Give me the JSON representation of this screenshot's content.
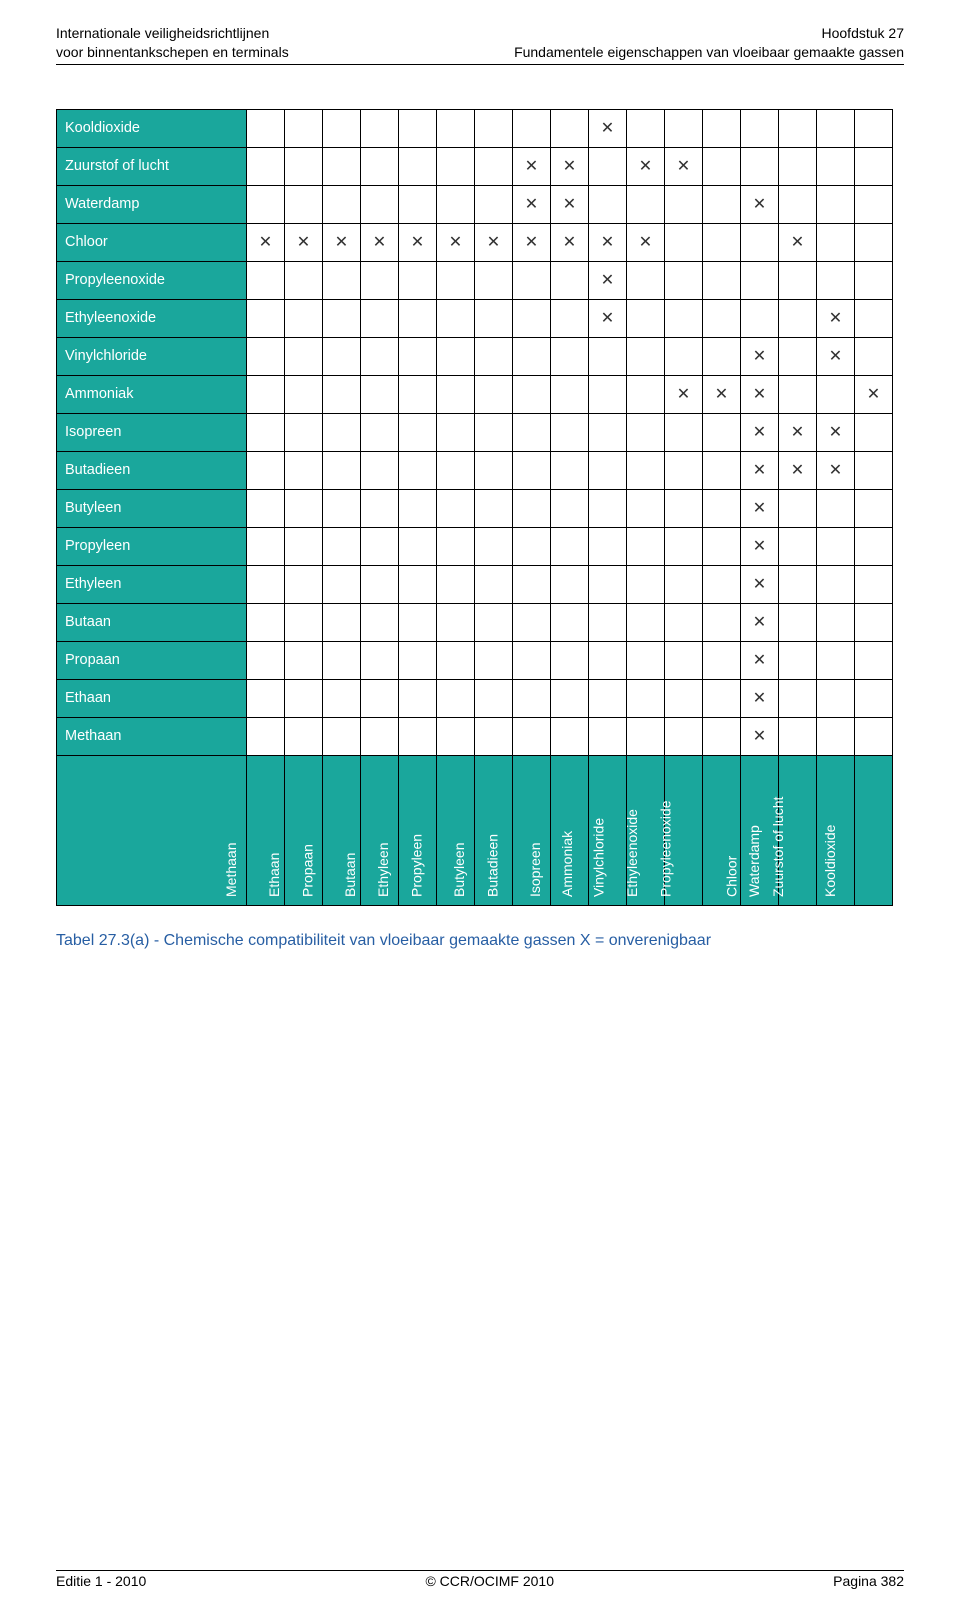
{
  "colors": {
    "header_teal": "#1aa79c",
    "text_white": "#ffffff",
    "caption_blue": "#275ea3",
    "mark": "#333333"
  },
  "header": {
    "left_line1": "Internationale veiligheidsrichtlijnen",
    "left_line2": "voor binnentankschepen en terminals",
    "right_line1": "Hoofdstuk 27",
    "right_line2": "Fundamentele eigenschappen van vloeibaar gemaakte gassen"
  },
  "footer": {
    "left": "Editie 1 - 2010",
    "center": "© CCR/OCIMF 2010",
    "right": "Pagina 382"
  },
  "caption": "Tabel 27.3(a) - Chemische compatibiliteit van vloeibaar gemaakte gassen X = onverenigbaar",
  "mark_glyph": "✕",
  "row_labels": [
    "Kooldioxide",
    "Zuurstof of lucht",
    "Waterdamp",
    "Chloor",
    "Propyleenoxide",
    "Ethyleenoxide",
    "Vinylchloride",
    "Ammoniak",
    "Isopreen",
    "Butadieen",
    "Butyleen",
    "Propyleen",
    "Ethyleen",
    "Butaan",
    "Propaan",
    "Ethaan",
    "Methaan"
  ],
  "col_labels": [
    "Methaan",
    "Ethaan",
    "Propaan",
    "Butaan",
    "Ethyleen",
    "Propyleen",
    "Butyleen",
    "Butadieen",
    "Isopreen",
    "Ammoniak",
    "Vinylchloride",
    "Ethyleenoxide",
    "Propyleenoxide",
    "Chloor",
    "Waterdamp",
    "Zuurstof of lucht",
    "Kooldioxide"
  ],
  "matrix": [
    [
      0,
      0,
      0,
      0,
      0,
      0,
      0,
      0,
      0,
      1,
      0,
      0,
      0,
      0,
      0,
      0,
      0
    ],
    [
      0,
      0,
      0,
      0,
      0,
      0,
      0,
      1,
      1,
      0,
      1,
      1,
      0,
      0,
      0,
      0,
      0
    ],
    [
      0,
      0,
      0,
      0,
      0,
      0,
      0,
      1,
      1,
      0,
      0,
      0,
      0,
      1,
      0,
      0,
      0
    ],
    [
      1,
      1,
      1,
      1,
      1,
      1,
      1,
      1,
      1,
      1,
      1,
      0,
      0,
      0,
      1,
      0,
      0
    ],
    [
      0,
      0,
      0,
      0,
      0,
      0,
      0,
      0,
      0,
      1,
      0,
      0,
      0,
      0,
      0,
      0,
      0
    ],
    [
      0,
      0,
      0,
      0,
      0,
      0,
      0,
      0,
      0,
      1,
      0,
      0,
      0,
      0,
      0,
      1,
      0
    ],
    [
      0,
      0,
      0,
      0,
      0,
      0,
      0,
      0,
      0,
      0,
      0,
      0,
      0,
      1,
      0,
      1,
      0
    ],
    [
      0,
      0,
      0,
      0,
      0,
      0,
      0,
      0,
      0,
      0,
      0,
      1,
      1,
      1,
      0,
      0,
      1
    ],
    [
      0,
      0,
      0,
      0,
      0,
      0,
      0,
      0,
      0,
      0,
      0,
      0,
      0,
      1,
      1,
      1,
      0
    ],
    [
      0,
      0,
      0,
      0,
      0,
      0,
      0,
      0,
      0,
      0,
      0,
      0,
      0,
      1,
      1,
      1,
      0
    ],
    [
      0,
      0,
      0,
      0,
      0,
      0,
      0,
      0,
      0,
      0,
      0,
      0,
      0,
      1,
      0,
      0,
      0
    ],
    [
      0,
      0,
      0,
      0,
      0,
      0,
      0,
      0,
      0,
      0,
      0,
      0,
      0,
      1,
      0,
      0,
      0
    ],
    [
      0,
      0,
      0,
      0,
      0,
      0,
      0,
      0,
      0,
      0,
      0,
      0,
      0,
      1,
      0,
      0,
      0
    ],
    [
      0,
      0,
      0,
      0,
      0,
      0,
      0,
      0,
      0,
      0,
      0,
      0,
      0,
      1,
      0,
      0,
      0
    ],
    [
      0,
      0,
      0,
      0,
      0,
      0,
      0,
      0,
      0,
      0,
      0,
      0,
      0,
      1,
      0,
      0,
      0
    ],
    [
      0,
      0,
      0,
      0,
      0,
      0,
      0,
      0,
      0,
      0,
      0,
      0,
      0,
      1,
      0,
      0,
      0
    ],
    [
      0,
      0,
      0,
      0,
      0,
      0,
      0,
      0,
      0,
      0,
      0,
      0,
      0,
      1,
      0,
      0,
      0
    ]
  ]
}
